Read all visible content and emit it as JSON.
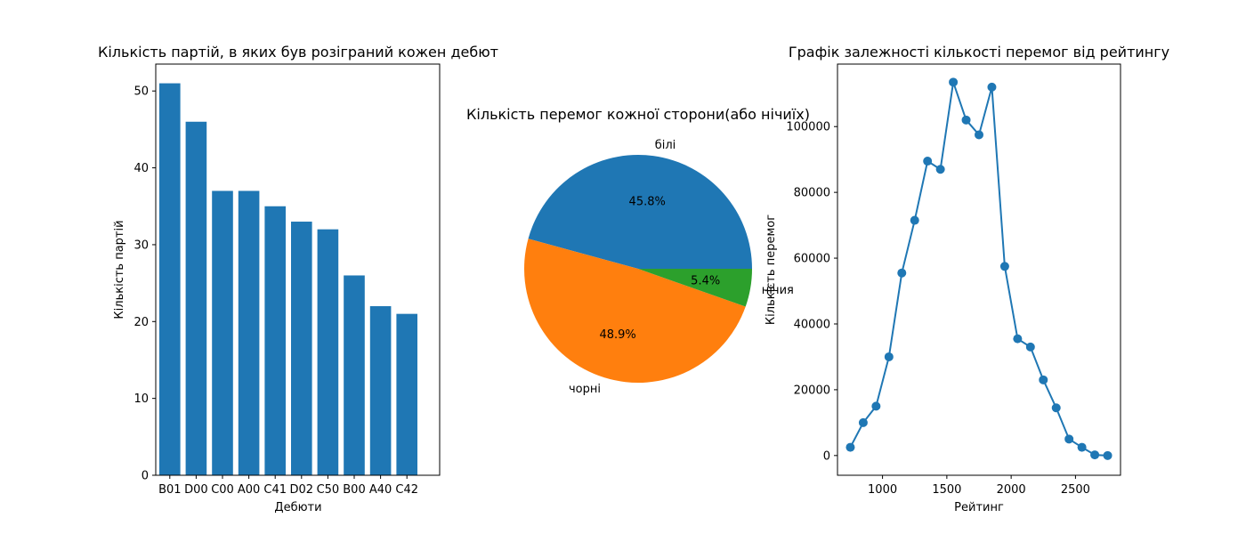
{
  "chart_data": [
    {
      "type": "bar",
      "title": "Кількість партій, в яких був розіграний кожен дебют",
      "xlabel": "Дебюти",
      "ylabel": "Кількість партій",
      "categories": [
        "B01",
        "D00",
        "C00",
        "A00",
        "C41",
        "D02",
        "C50",
        "B00",
        "A40",
        "C42"
      ],
      "values": [
        51,
        46,
        37,
        37,
        35,
        33,
        32,
        26,
        22,
        21
      ],
      "ylim": [
        0,
        53.5
      ],
      "yticks": [
        0,
        10,
        20,
        30,
        40,
        50
      ],
      "color": "#1f77b4",
      "grid": false
    },
    {
      "type": "pie",
      "title": "Кількість перемог кожної сторони(або нічиїх)",
      "labels": [
        "білі",
        "чорні",
        "нічия"
      ],
      "values": [
        45.8,
        48.9,
        5.4
      ],
      "pct_labels": [
        "45.8%",
        "48.9%",
        "5.4%"
      ],
      "colors": [
        "#1f77b4",
        "#ff7f0e",
        "#2ca02c"
      ]
    },
    {
      "type": "line",
      "title": "Графік залежності кількості перемог від рейтингу",
      "xlabel": "Рейтинг",
      "ylabel": "Кількість перемог",
      "x": [
        750,
        850,
        950,
        1050,
        1150,
        1250,
        1350,
        1450,
        1550,
        1650,
        1750,
        1850,
        1950,
        2050,
        2150,
        2250,
        2350,
        2450,
        2550,
        2650,
        2750
      ],
      "y": [
        2500,
        10000,
        15000,
        30000,
        55500,
        71500,
        89500,
        87000,
        113500,
        102000,
        97500,
        112000,
        57500,
        35500,
        33000,
        23000,
        14500,
        5000,
        2500,
        200,
        0
      ],
      "xlim": [
        650,
        2850
      ],
      "ylim": [
        -6000,
        119000
      ],
      "xticks": [
        1000,
        1500,
        2000,
        2500
      ],
      "yticks": [
        0,
        20000,
        40000,
        60000,
        80000,
        100000
      ],
      "color": "#1f77b4",
      "marker": "circle",
      "grid": false
    }
  ]
}
